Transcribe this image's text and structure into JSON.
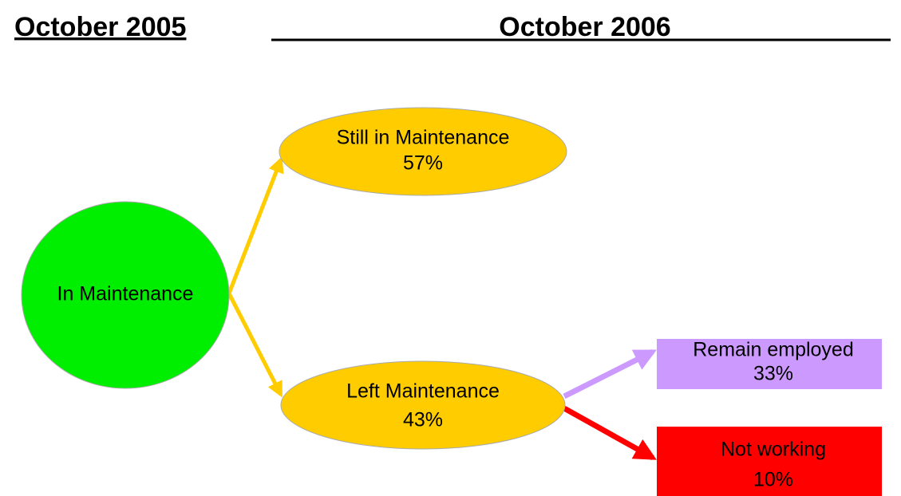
{
  "header": {
    "left": "October 2005",
    "right": "October 2006"
  },
  "nodes": [
    {
      "label": "In Maintenance"
    },
    {
      "label": "Still in Maintenance",
      "value": "57%"
    },
    {
      "label": "Left Maintenance",
      "value": "43%"
    },
    {
      "label": "Remain employed",
      "value": "33%"
    },
    {
      "label": "Not working",
      "value": "10%"
    }
  ]
}
